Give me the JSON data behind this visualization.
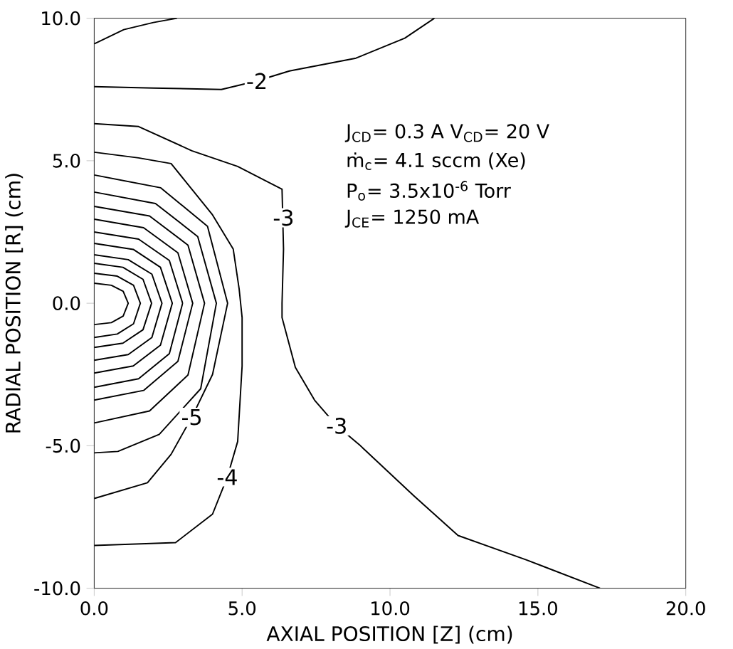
{
  "chart_data": {
    "type": "line",
    "xlabel": "AXIAL POSITION [Z] (cm)",
    "ylabel": "RADIAL POSITION [R] (cm)",
    "xlim": [
      0,
      20
    ],
    "ylim": [
      -10,
      10
    ],
    "xticks": [
      {
        "value": 0,
        "label": "0.0"
      },
      {
        "value": 5,
        "label": "5.0"
      },
      {
        "value": 10,
        "label": "10.0"
      },
      {
        "value": 15,
        "label": "15.0"
      },
      {
        "value": 20,
        "label": "20.0"
      }
    ],
    "yticks": [
      {
        "value": -10,
        "label": "-10.0"
      },
      {
        "value": -5,
        "label": "-5.0"
      },
      {
        "value": 0,
        "label": "0.0"
      },
      {
        "value": 5,
        "label": "5.0"
      },
      {
        "value": 10,
        "label": "10.0"
      }
    ],
    "grid": false,
    "marker": "none",
    "line_style": "solid",
    "series": [
      {
        "color": "#000000",
        "x": [
          0,
          1,
          2,
          2.8
        ],
        "values": [
          9.1,
          9.6,
          9.85,
          10
        ]
      },
      {
        "color": "#000000",
        "x": [
          0,
          2,
          4.3,
          5.5,
          6.6,
          8.85,
          10.5,
          11.5
        ],
        "values": [
          7.6,
          7.55,
          7.5,
          7.8,
          8.15,
          8.6,
          9.3,
          10
        ]
      },
      {
        "color": "#000000",
        "x": [
          0,
          1.5,
          3.3,
          4.85,
          6.35,
          6.4,
          6.35,
          6.35,
          6.8,
          7.45,
          8.2,
          9.0,
          10.8,
          12.3,
          14.6,
          17.1
        ],
        "values": [
          6.3,
          6.2,
          5.35,
          4.8,
          4.0,
          1.9,
          0,
          -0.5,
          -2.25,
          -3.4,
          -4.3,
          -5.0,
          -6.75,
          -8.15,
          -9.0,
          -10
        ]
      },
      {
        "color": "#000000",
        "x": [
          0,
          1.5,
          2.6,
          3.3,
          4.0,
          4.7,
          4.9,
          5.0,
          5.0,
          4.85,
          4.5,
          4.0,
          2.75,
          0
        ],
        "values": [
          5.3,
          5.1,
          4.9,
          4.0,
          3.1,
          1.9,
          0.5,
          -0.5,
          -2.2,
          -4.85,
          -6.1,
          -7.4,
          -8.4,
          -8.5
        ]
      },
      {
        "color": "#000000",
        "x": [
          0,
          2.25,
          3.83,
          4.51,
          4.0,
          3.3,
          2.6,
          1.8,
          0
        ],
        "values": [
          4.5,
          4.05,
          2.7,
          0,
          -2.5,
          -4.0,
          -5.3,
          -6.3,
          -6.85
        ]
      },
      {
        "color": "#000000",
        "x": [
          0,
          2.07,
          3.5,
          4.13,
          3.6,
          2.2,
          0.8,
          0
        ],
        "values": [
          3.9,
          3.5,
          2.34,
          0,
          -3.0,
          -4.6,
          -5.2,
          -5.25
        ]
      },
      {
        "color": "#000000",
        "x": [
          0,
          1.87,
          3.17,
          3.73,
          3.17,
          1.87,
          0
        ],
        "values": [
          3.4,
          3.06,
          2.04,
          0,
          -2.52,
          -3.78,
          -4.2
        ]
      },
      {
        "color": "#000000",
        "x": [
          0,
          1.67,
          2.83,
          3.33,
          2.83,
          1.67,
          0
        ],
        "values": [
          2.95,
          2.65,
          1.77,
          0,
          -2.04,
          -3.06,
          -3.4
        ]
      },
      {
        "color": "#000000",
        "x": [
          0,
          1.5,
          2.54,
          2.99,
          2.54,
          1.5,
          0
        ],
        "values": [
          2.5,
          2.25,
          1.5,
          0,
          -1.77,
          -2.65,
          -2.95
        ]
      },
      {
        "color": "#000000",
        "x": [
          0,
          1.32,
          2.24,
          2.64,
          2.24,
          1.32,
          0
        ],
        "values": [
          2.1,
          1.89,
          1.26,
          0,
          -1.47,
          -2.2,
          -2.45
        ]
      },
      {
        "color": "#000000",
        "x": [
          0,
          1.15,
          1.95,
          2.29,
          1.95,
          1.15,
          0
        ],
        "values": [
          1.7,
          1.53,
          1.02,
          0,
          -1.2,
          -1.8,
          -2.0
        ]
      },
      {
        "color": "#000000",
        "x": [
          0,
          0.97,
          1.65,
          1.94,
          1.65,
          0.97,
          0
        ],
        "values": [
          1.4,
          1.26,
          0.84,
          0,
          -0.93,
          -1.4,
          -1.55
        ]
      },
      {
        "color": "#000000",
        "x": [
          0,
          0.78,
          1.33,
          1.56,
          1.33,
          0.78,
          0
        ],
        "values": [
          1.05,
          0.95,
          0.63,
          0,
          -0.72,
          -1.08,
          -1.2
        ]
      },
      {
        "color": "#000000",
        "x": [
          0,
          0.58,
          0.98,
          1.15,
          0.98,
          0.58,
          0
        ],
        "values": [
          0.7,
          0.63,
          0.42,
          0,
          -0.45,
          -0.68,
          -0.75
        ]
      }
    ],
    "annotations": [
      {
        "text": "-2",
        "x": 5.5,
        "y": 7.8
      },
      {
        "text": "-3",
        "x": 6.4,
        "y": 3.0
      },
      {
        "text": "-3",
        "x": 8.2,
        "y": -4.3
      },
      {
        "text": "-4",
        "x": 4.5,
        "y": -6.1
      },
      {
        "text": "-5",
        "x": 3.3,
        "y": -4.0
      },
      "J$_{CD}$= 0.3 A  V$_{CD}$= 20 V",
      "ṁ$_{c}$= 4.1 sccm (Xe)",
      "P$_{o}$= 3.5x10$^{-6}$ Torr",
      "J$_{CE}$= 1250 mA"
    ]
  }
}
